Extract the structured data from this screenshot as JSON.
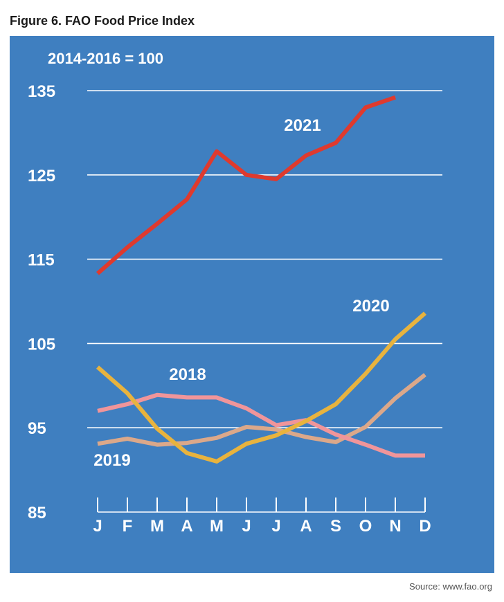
{
  "figure": {
    "title": "Figure 6. FAO Food Price Index",
    "source": "Source: www.fao.org"
  },
  "colors": {
    "panel": "#3f7fc0",
    "grid": "#ffffff",
    "2021": "#df3a2e",
    "2020": "#e8b33e",
    "2019": "#dba88a",
    "2018": "#f0959a"
  },
  "chart_data": {
    "type": "line",
    "subtitle": "2014-2016 = 100",
    "xlabel": "",
    "ylabel": "",
    "categories": [
      "J",
      "F",
      "M",
      "A",
      "M",
      "J",
      "J",
      "A",
      "S",
      "O",
      "N",
      "D"
    ],
    "y_ticks": [
      85,
      95,
      105,
      115,
      125,
      135
    ],
    "ylim": [
      85,
      135
    ],
    "grid": true,
    "series": [
      {
        "name": "2021",
        "color": "#df3a2e",
        "values": [
          113.3,
          116.4,
          119.2,
          122.1,
          127.8,
          125.0,
          124.5,
          127.3,
          128.8,
          133.0,
          134.2,
          null
        ]
      },
      {
        "name": "2020",
        "color": "#e8b33e",
        "values": [
          102.2,
          99.1,
          94.9,
          92.0,
          91.0,
          93.1,
          94.1,
          95.8,
          97.8,
          101.4,
          105.5,
          108.6
        ]
      },
      {
        "name": "2019",
        "color": "#dba88a",
        "values": [
          93.1,
          93.7,
          93.0,
          93.2,
          93.8,
          95.1,
          94.8,
          93.9,
          93.3,
          95.1,
          98.5,
          101.3
        ]
      },
      {
        "name": "2018",
        "color": "#f0959a",
        "values": [
          97.0,
          97.8,
          98.9,
          98.6,
          98.6,
          97.3,
          95.3,
          95.9,
          94.2,
          93.0,
          91.7,
          91.7
        ]
      }
    ]
  }
}
